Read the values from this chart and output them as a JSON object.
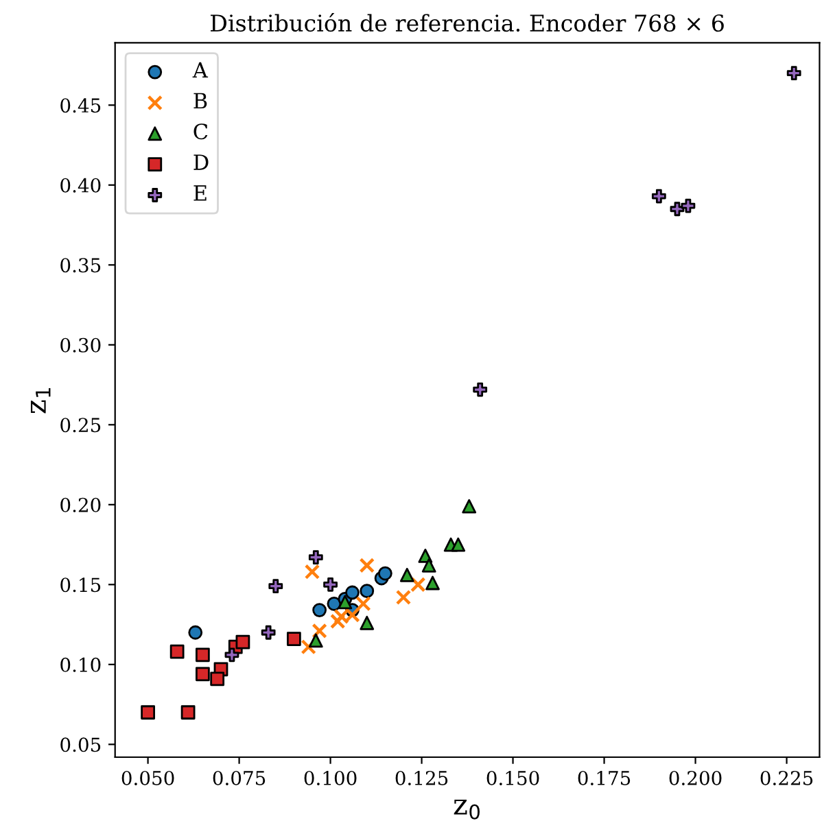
{
  "chart_data": {
    "type": "scatter",
    "title": "Distribución de referencia. Encoder 768 × 6",
    "xlabel": "z$_{0}$",
    "ylabel": "z$_{1}$",
    "xlim": [
      0.041,
      0.234
    ],
    "ylim": [
      0.042,
      0.489
    ],
    "xticks": [
      {
        "value": 0.05,
        "label": "0.050"
      },
      {
        "value": 0.075,
        "label": "0.075"
      },
      {
        "value": 0.1,
        "label": "0.100"
      },
      {
        "value": 0.125,
        "label": "0.125"
      },
      {
        "value": 0.15,
        "label": "0.150"
      },
      {
        "value": 0.175,
        "label": "0.175"
      },
      {
        "value": 0.2,
        "label": "0.200"
      },
      {
        "value": 0.225,
        "label": "0.225"
      }
    ],
    "yticks": [
      0.05,
      {
        "value": 0.1,
        "label": "0.10"
      },
      0.15,
      {
        "value": 0.2,
        "label": "0.20"
      },
      0.25,
      {
        "value": 0.3,
        "label": "0.30"
      },
      0.35,
      {
        "value": 0.4,
        "label": "0.40"
      },
      0.45
    ],
    "grid": false,
    "legend": "top left",
    "series": [
      {
        "name": "A",
        "color": "#1f77b4",
        "marker": "circle",
        "x": [
          0.063,
          0.097,
          0.101,
          0.104,
          0.106,
          0.11,
          0.114,
          0.115,
          0.106
        ],
        "values": [
          0.12,
          0.134,
          0.138,
          0.141,
          0.145,
          0.146,
          0.154,
          0.157,
          0.134
        ]
      },
      {
        "name": "B",
        "color": "#ff7f0e",
        "marker": "cross",
        "x": [
          0.095,
          0.11,
          0.124,
          0.12,
          0.109,
          0.103,
          0.102,
          0.097,
          0.094,
          0.106
        ],
        "values": [
          0.158,
          0.162,
          0.15,
          0.142,
          0.138,
          0.13,
          0.127,
          0.121,
          0.111,
          0.131
        ]
      },
      {
        "name": "C",
        "color": "#2ca02c",
        "marker": "triangle",
        "x": [
          0.138,
          0.133,
          0.135,
          0.126,
          0.127,
          0.121,
          0.128,
          0.11,
          0.096,
          0.104
        ],
        "values": [
          0.199,
          0.175,
          0.175,
          0.168,
          0.162,
          0.156,
          0.151,
          0.126,
          0.115,
          0.139
        ]
      },
      {
        "name": "D",
        "color": "#d62728",
        "marker": "square",
        "x": [
          0.05,
          0.061,
          0.058,
          0.065,
          0.065,
          0.07,
          0.069,
          0.074,
          0.076,
          0.09
        ],
        "values": [
          0.07,
          0.07,
          0.108,
          0.106,
          0.094,
          0.097,
          0.091,
          0.111,
          0.114,
          0.116
        ]
      },
      {
        "name": "E",
        "color": "#9467bd",
        "marker": "plus",
        "x": [
          0.096,
          0.1,
          0.085,
          0.083,
          0.073,
          0.141,
          0.19,
          0.195,
          0.198,
          0.227
        ],
        "values": [
          0.167,
          0.15,
          0.149,
          0.12,
          0.106,
          0.272,
          0.393,
          0.385,
          0.387,
          0.47
        ]
      }
    ]
  }
}
